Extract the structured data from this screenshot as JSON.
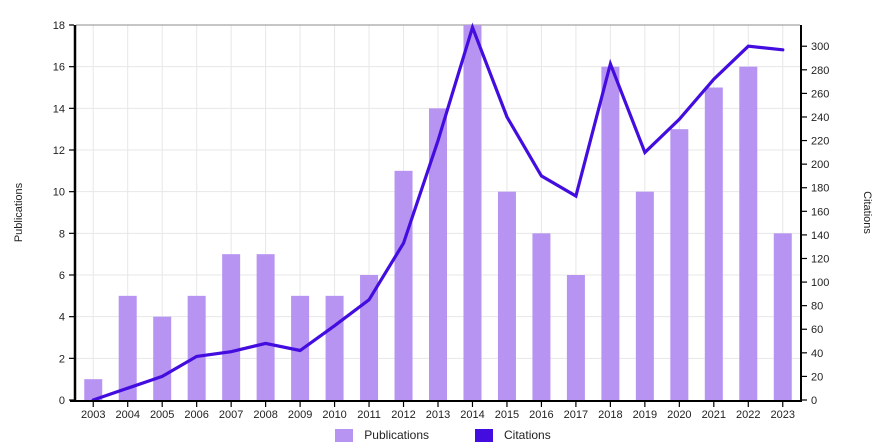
{
  "chart_data": {
    "type": "combo",
    "title": "",
    "categories": [
      2003,
      2004,
      2005,
      2006,
      2007,
      2008,
      2009,
      2010,
      2011,
      2012,
      2013,
      2014,
      2015,
      2016,
      2017,
      2018,
      2019,
      2020,
      2021,
      2022,
      2023
    ],
    "series": [
      {
        "name": "Publications",
        "type": "bar",
        "axis": "left",
        "color": "#b894f2",
        "values": [
          1,
          5,
          4,
          5,
          7,
          7,
          5,
          5,
          6,
          11,
          14,
          18,
          10,
          8,
          6,
          16,
          10,
          13,
          15,
          16,
          8
        ]
      },
      {
        "name": "Citations",
        "type": "line",
        "axis": "right",
        "color": "#430de0",
        "values": [
          0,
          10,
          20,
          37,
          41,
          48,
          42,
          63,
          85,
          133,
          220,
          316,
          240,
          190,
          173,
          285,
          210,
          238,
          272,
          300,
          297
        ]
      }
    ],
    "left_axis": {
      "label": "Publications",
      "range": [
        0,
        18
      ],
      "tick_step": 2,
      "ticks": [
        0,
        2,
        4,
        6,
        8,
        10,
        12,
        14,
        16,
        18
      ]
    },
    "right_axis": {
      "label": "Citations",
      "range": [
        0,
        318
      ],
      "tick_step": 20,
      "ticks": [
        0,
        20,
        40,
        60,
        80,
        100,
        120,
        140,
        160,
        180,
        200,
        220,
        240,
        260,
        280,
        300
      ]
    },
    "grid": true,
    "legend_position": "bottom",
    "legend": {
      "items": [
        {
          "label": "Publications",
          "color": "#b894f2"
        },
        {
          "label": "Citations",
          "color": "#430de0"
        }
      ]
    },
    "colors": {
      "background": "#ffffff",
      "gridline": "#e7e7e7",
      "top_border": "#8c8c8c",
      "axis_spine": "#000000",
      "tick_text": "#1f1f1f"
    }
  }
}
